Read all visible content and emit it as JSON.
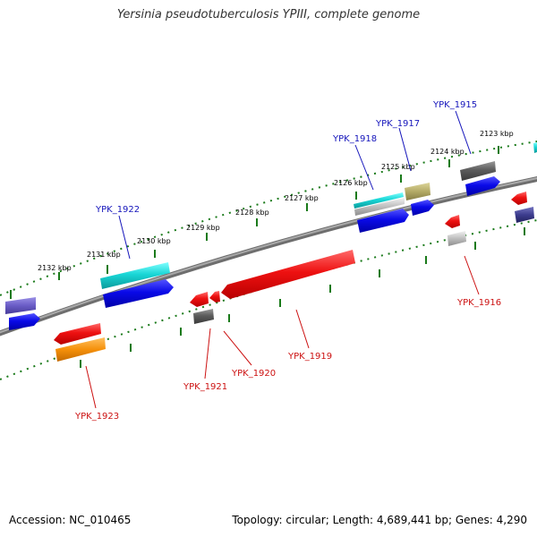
{
  "title": "Yersinia pseudotuberculosis YPIII, complete genome",
  "footer": {
    "accession": "Accession: NC_010465",
    "summary": "Topology: circular; Length: 4,689,441 bp; Genes: 4,290"
  },
  "colors": {
    "backbone": "#7d7d7d",
    "tick": "#1a7a1a",
    "forward_label": "#1515bb",
    "reverse_label": "#cc1111"
  },
  "position_ticks": [
    "2132 kbp",
    "2131 kbp",
    "2130 kbp",
    "2129 kbp",
    "2128 kbp",
    "2127 kbp",
    "2126 kbp",
    "2125 kbp",
    "2124 kbp",
    "2123 kbp"
  ],
  "forward_labels": [
    "YPK_1922",
    "YPK_1918",
    "YPK_1917",
    "YPK_1915"
  ],
  "reverse_labels": [
    "YPK_1923",
    "YPK_1921",
    "YPK_1920",
    "YPK_1919",
    "YPK_1916"
  ]
}
